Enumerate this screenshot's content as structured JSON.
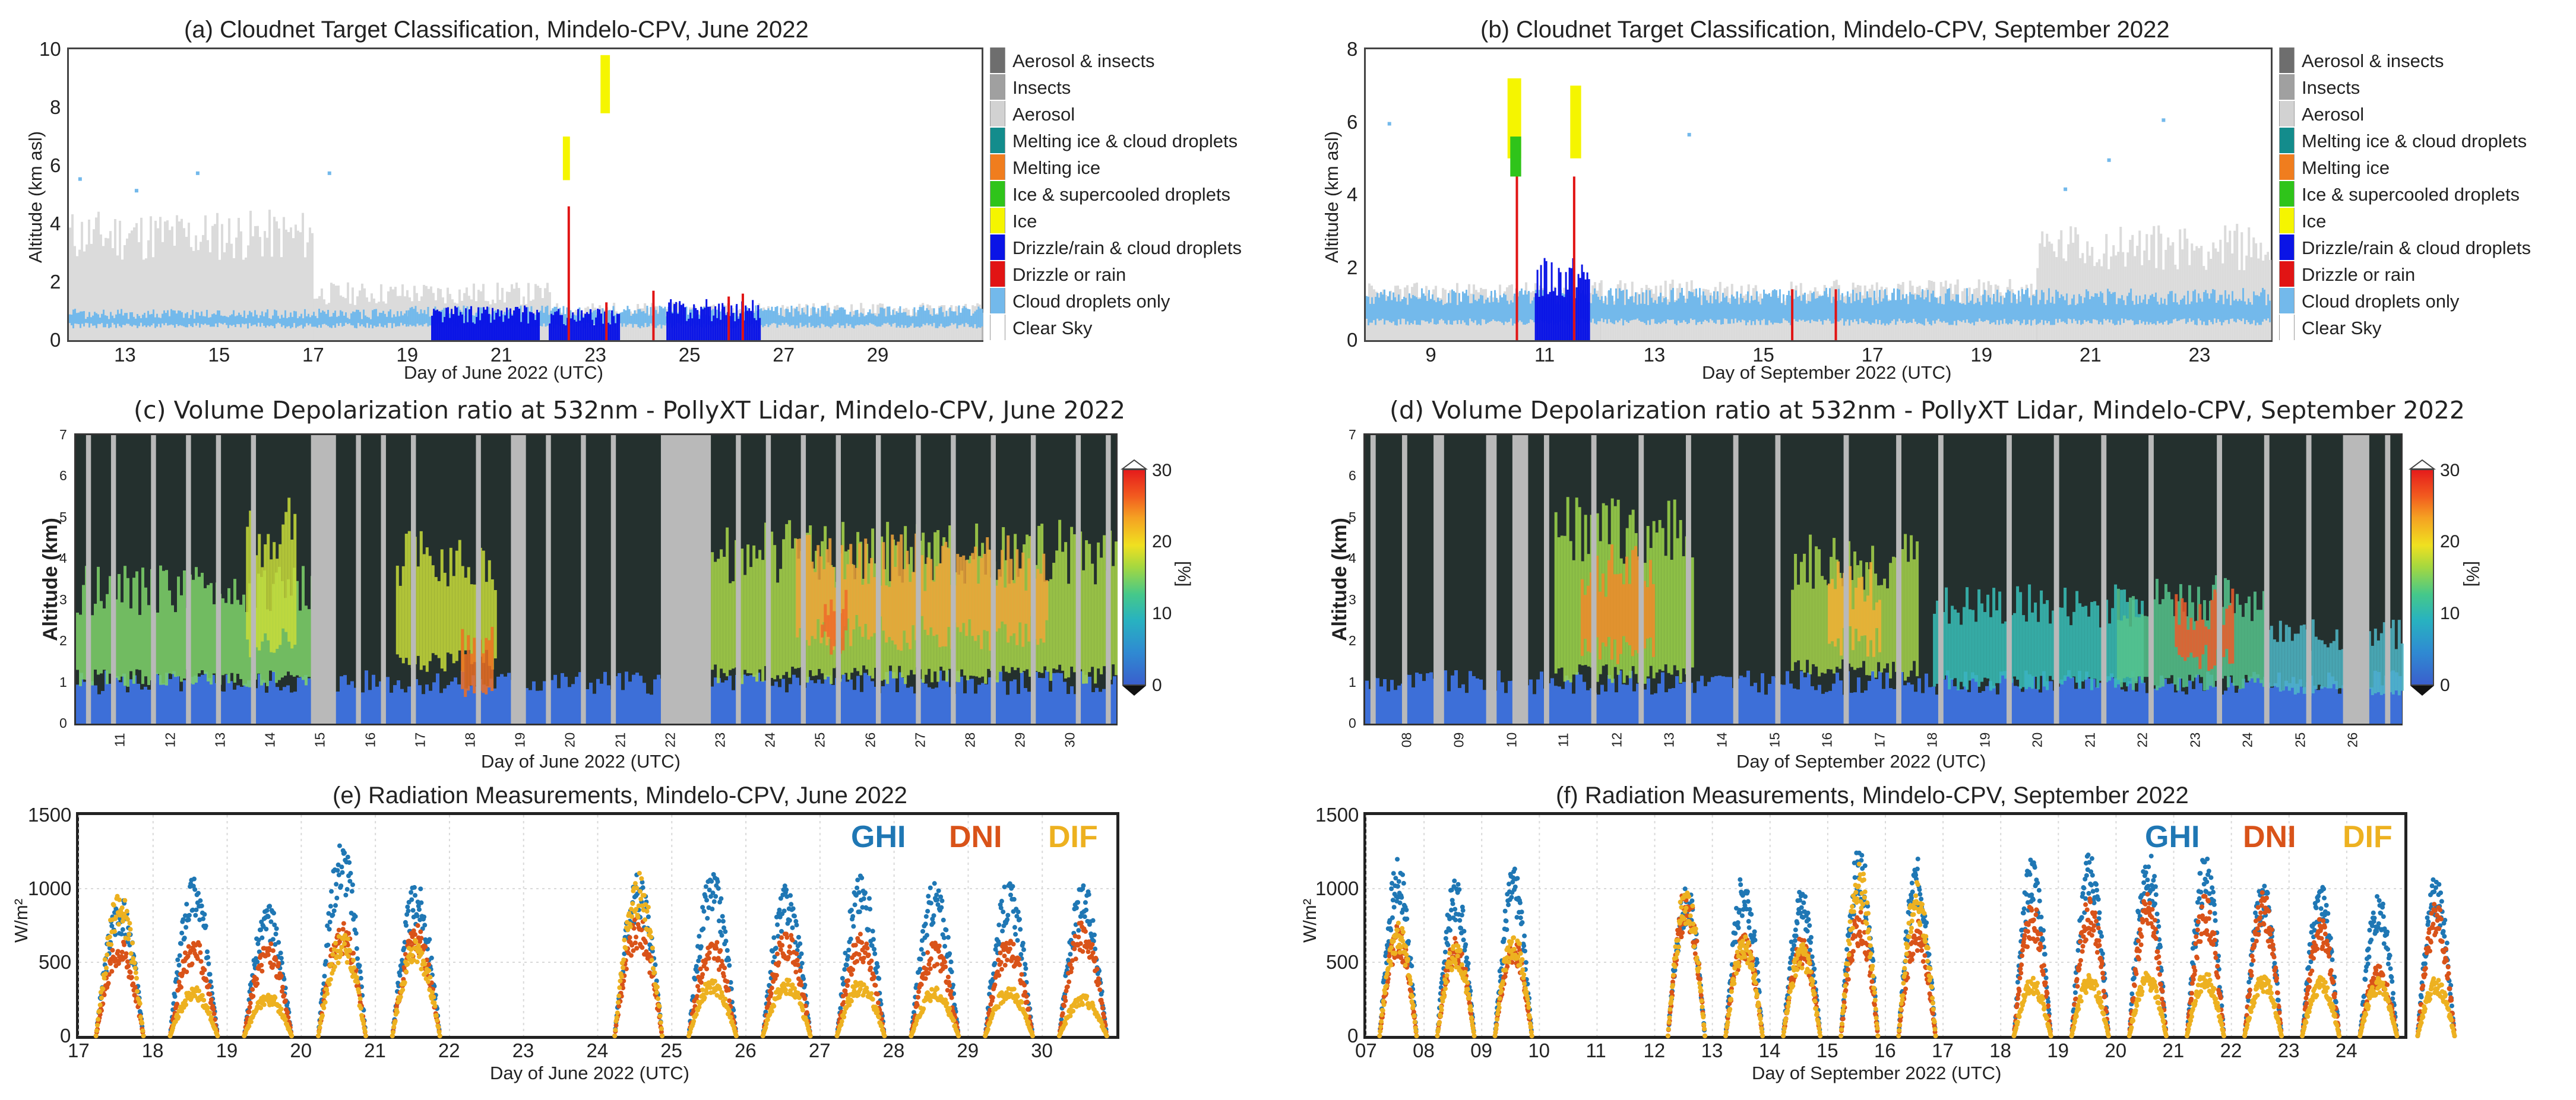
{
  "cloudnet_legend": [
    {
      "label": "Aerosol & insects",
      "color": "#6e6e6e"
    },
    {
      "label": "Insects",
      "color": "#a0a0a0"
    },
    {
      "label": "Aerosol",
      "color": "#d2d2d2"
    },
    {
      "label": "Melting ice & cloud droplets",
      "color": "#138c8c"
    },
    {
      "label": "Melting ice",
      "color": "#f07d1e"
    },
    {
      "label": "Ice & supercooled droplets",
      "color": "#2fc41a"
    },
    {
      "label": "Ice",
      "color": "#f5f500"
    },
    {
      "label": "Drizzle/rain & cloud droplets",
      "color": "#0a14e6"
    },
    {
      "label": "Drizzle or rain",
      "color": "#e11414"
    },
    {
      "label": "Cloud droplets only",
      "color": "#73b9eb"
    },
    {
      "label": "Clear Sky",
      "color": "#ffffff"
    }
  ],
  "colors": {
    "ghi": "#1f77b4",
    "dni": "#d95319",
    "dif": "#edb120"
  },
  "chart_data": [
    {
      "id": "a",
      "type": "heatmap",
      "title": "(a) Cloudnet Target Classification, Mindelo-CPV, June 2022",
      "xlabel": "Day of June 2022 (UTC)",
      "ylabel": "Altitude (km asl)",
      "xlim": [
        11.8,
        31.2
      ],
      "ylim": [
        0,
        10
      ],
      "xticks": [
        "13",
        "15",
        "17",
        "19",
        "21",
        "23",
        "25",
        "27",
        "29"
      ],
      "yticks": [
        "0",
        "2",
        "4",
        "6",
        "8",
        "10"
      ]
    },
    {
      "id": "b",
      "type": "heatmap",
      "title": "(b) Cloudnet Target Classification, Mindelo-CPV, September 2022",
      "xlabel": "Day of September 2022 (UTC)",
      "ylabel": "Altitude (km asl)",
      "xlim": [
        7.7,
        24.3
      ],
      "ylim": [
        0,
        8
      ],
      "xticks": [
        "9",
        "11",
        "13",
        "15",
        "17",
        "19",
        "21",
        "23"
      ],
      "yticks": [
        "0",
        "2",
        "4",
        "6",
        "8"
      ]
    },
    {
      "id": "c",
      "type": "heatmap",
      "title": "(c) Volume Depolarization ratio at 532nm - PollyXT Lidar, Mindelo-CPV,  June 2022",
      "xlabel": "Day of June 2022 (UTC)",
      "ylabel": "Altitude (km)",
      "xlim": [
        10.1,
        30.9
      ],
      "ylim": [
        0,
        7
      ],
      "xticks": [
        "11",
        "12",
        "13",
        "14",
        "15",
        "16",
        "17",
        "18",
        "19",
        "20",
        "21",
        "22",
        "23",
        "24",
        "25",
        "26",
        "27",
        "28",
        "29",
        "30"
      ],
      "yticks": [
        "0",
        "1",
        "2",
        "3",
        "4",
        "5",
        "6",
        "7"
      ],
      "colorbar": {
        "label": "[%]",
        "ticks": [
          "0",
          "10",
          "20",
          "30"
        ],
        "range": [
          0,
          30
        ]
      }
    },
    {
      "id": "d",
      "type": "heatmap",
      "title": "(d) Volume Depolarization ratio at 532nm - PollyXT Lidar, Mindelo-CPV,  September 2022",
      "xlabel": "Day of September 2022 (UTC)",
      "ylabel": "Altitude (km)",
      "xlim": [
        7.2,
        26.9
      ],
      "ylim": [
        0,
        7
      ],
      "xticks": [
        "08",
        "09",
        "10",
        "11",
        "12",
        "13",
        "14",
        "15",
        "16",
        "17",
        "18",
        "19",
        "20",
        "21",
        "22",
        "23",
        "24",
        "25",
        "26"
      ],
      "yticks": [
        "0",
        "1",
        "2",
        "3",
        "4",
        "5",
        "6",
        "7"
      ],
      "colorbar": {
        "label": "[%]",
        "ticks": [
          "0",
          "10",
          "20",
          "30"
        ],
        "range": [
          0,
          30
        ]
      }
    },
    {
      "id": "e",
      "type": "scatter",
      "title": "(e) Radiation Measurements, Mindelo-CPV, June 2022",
      "xlabel": "Day of June 2022 (UTC)",
      "ylabel": "W/m²",
      "xlim": [
        17,
        31
      ],
      "ylim": [
        0,
        1500
      ],
      "xticks": [
        "17",
        "18",
        "19",
        "20",
        "21",
        "22",
        "23",
        "24",
        "25",
        "26",
        "27",
        "28",
        "29",
        "30"
      ],
      "yticks": [
        "0",
        "500",
        "1000",
        "1500"
      ],
      "legend": [
        "GHI",
        "DNI",
        "DIF"
      ],
      "series": [
        {
          "name": "GHI",
          "peaks": [
            920,
            1040,
            860,
            1300,
            1000,
            0,
            0,
            1060,
            1070,
            990,
            1060,
            1010,
            1010,
            990
          ]
        },
        {
          "name": "DNI",
          "peaks": [
            640,
            640,
            620,
            740,
            720,
            0,
            0,
            780,
            640,
            680,
            660,
            610,
            650,
            760
          ]
        },
        {
          "name": "DIF",
          "peaks": [
            940,
            320,
            280,
            680,
            640,
            0,
            0,
            1060,
            380,
            380,
            370,
            320,
            330,
            270
          ]
        }
      ]
    },
    {
      "id": "f",
      "type": "scatter",
      "title": "(f) Radiation Measurements, Mindelo-CPV, September 2022",
      "xlabel": "Day of September 2022 (UTC)",
      "ylabel": "W/m²",
      "xlim": [
        7,
        25
      ],
      "ylim": [
        0,
        1500
      ],
      "xticks": [
        "07",
        "08",
        "09",
        "10",
        "11",
        "12",
        "13",
        "14",
        "15",
        "16",
        "17",
        "18",
        "19",
        "20",
        "21",
        "22",
        "23",
        "24"
      ],
      "yticks": [
        "0",
        "500",
        "1000",
        "1500"
      ],
      "legend": [
        "GHI",
        "DNI",
        "DIF"
      ],
      "series": [
        {
          "name": "GHI",
          "peaks": [
            1150,
            1040,
            1090,
            0,
            0,
            1000,
            1080,
            980,
            1240,
            1150,
            0,
            1180,
            1210,
            1230,
            1200,
            1010,
            1000,
            940,
            1050
          ]
        },
        {
          "name": "DNI",
          "peaks": [
            720,
            650,
            640,
            0,
            0,
            980,
            690,
            640,
            820,
            750,
            0,
            880,
            920,
            930,
            920,
            940,
            780,
            460,
            870
          ]
        },
        {
          "name": "DIF",
          "peaks": [
            760,
            620,
            700,
            0,
            0,
            1000,
            670,
            600,
            1120,
            1020,
            0,
            380,
            400,
            420,
            420,
            400,
            380,
            380,
            380
          ]
        }
      ]
    }
  ]
}
